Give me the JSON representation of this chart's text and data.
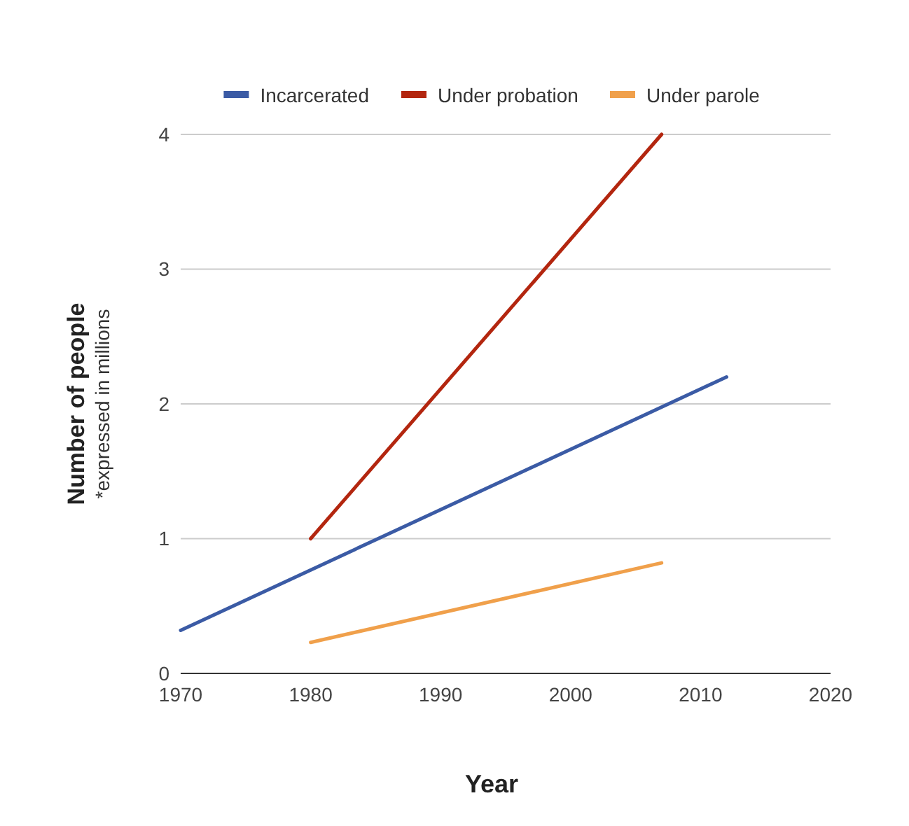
{
  "chart_data": {
    "type": "line",
    "xlabel": "Year",
    "ylabel": "Number of people",
    "annotations": [
      "*expressed in millions"
    ],
    "xlim": [
      1970,
      2020
    ],
    "xticks": [
      1970,
      1980,
      1990,
      2000,
      2010,
      2020
    ],
    "ylim": [
      0,
      4
    ],
    "yticks": [
      0,
      1,
      2,
      3,
      4
    ],
    "grid": "y",
    "legend": "top",
    "marker": "none",
    "line_style": "solid",
    "series": [
      {
        "name": "Incarcerated",
        "color": "#3b5ba5",
        "x": [
          1970,
          2012
        ],
        "values": [
          0.32,
          2.2
        ]
      },
      {
        "name": "Under probation",
        "color": "#b3260f",
        "x": [
          1980,
          2007
        ],
        "values": [
          1.0,
          4.0
        ]
      },
      {
        "name": "Under parole",
        "color": "#f0a04b",
        "x": [
          1980,
          2007
        ],
        "values": [
          0.23,
          0.82
        ]
      }
    ]
  }
}
